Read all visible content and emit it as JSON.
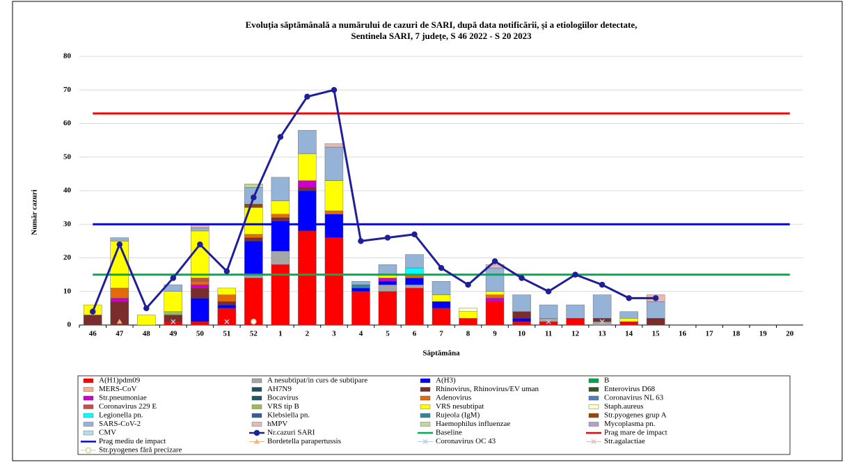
{
  "chart_data": {
    "type": "bar",
    "title": "Evoluția săptămânală a numărului  de cazuri de SARI, după data notificării, și a etiologiilor detectate,",
    "subtitle": "Sentinela SARI, 7 județe, S 46 2022 - S 20 2023",
    "y_label": "Număr cazuri",
    "x_label": "Săptămâna",
    "categories": [
      "46",
      "47",
      "48",
      "49",
      "50",
      "51",
      "52",
      "1",
      "2",
      "3",
      "4",
      "5",
      "6",
      "7",
      "8",
      "9",
      "10",
      "11",
      "12",
      "13",
      "14",
      "15",
      "16",
      "17",
      "18",
      "19",
      "20"
    ],
    "ylim": [
      0,
      80
    ],
    "yticks": [
      0,
      10,
      20,
      30,
      40,
      50,
      60,
      70,
      80
    ],
    "grid": true,
    "series": [
      {
        "name": "A(H1)pdm09",
        "type": "bar",
        "color": "#ff0000",
        "values": [
          0,
          0,
          0,
          1,
          1,
          5,
          14,
          18,
          28,
          26,
          10,
          10,
          11,
          5,
          2,
          7,
          1,
          1,
          2,
          0,
          1,
          0,
          0,
          0,
          0,
          0,
          0
        ]
      },
      {
        "name": "A nesubtipat/in curs de subtipare",
        "type": "bar",
        "color": "#a6a6a6",
        "values": [
          0,
          0,
          0,
          0,
          0,
          0,
          1,
          4,
          0,
          0,
          0,
          2,
          1,
          0,
          0,
          0,
          0,
          1,
          0,
          1,
          0,
          0,
          0,
          0,
          0,
          0,
          0
        ]
      },
      {
        "name": "A(H3)",
        "type": "bar",
        "color": "#0000ff",
        "values": [
          0,
          0,
          0,
          0,
          7,
          1,
          10,
          9,
          12,
          7,
          1,
          1,
          2,
          2,
          0,
          0,
          1,
          0,
          0,
          0,
          0,
          0,
          0,
          0,
          0,
          0,
          0
        ]
      },
      {
        "name": "B",
        "type": "bar",
        "color": "#00a550"
      },
      {
        "name": "MERS-CoV",
        "type": "bar",
        "color": "#f4b183"
      },
      {
        "name": "AH7N9",
        "type": "bar",
        "color": "#1f4e5f"
      },
      {
        "name": "Rhinovirus, Rhinovirus/EV uman",
        "type": "bar",
        "color": "#7b2c2c",
        "values": [
          3,
          7,
          0,
          2,
          3,
          1,
          1,
          1,
          1,
          0,
          0,
          0,
          0,
          0,
          0,
          0,
          2,
          0,
          0,
          1,
          0,
          2,
          0,
          0,
          0,
          0,
          0
        ]
      },
      {
        "name": "Enterovirus D68",
        "type": "bar",
        "color": "#375623"
      },
      {
        "name": "Str.pneumoniae",
        "type": "bar",
        "color": "#cc00cc",
        "values": [
          0,
          1,
          0,
          0,
          1,
          0,
          0,
          0,
          2,
          0,
          0,
          1,
          0,
          0,
          0,
          1,
          0,
          0,
          0,
          0,
          0,
          0,
          0,
          0,
          0,
          0,
          0
        ]
      },
      {
        "name": "Bocavirus",
        "type": "bar",
        "color": "#215967"
      },
      {
        "name": "Adenovirus",
        "type": "bar",
        "color": "#e36c09",
        "values": [
          0,
          3,
          0,
          0,
          1,
          2,
          1,
          1,
          0,
          1,
          0,
          0,
          1,
          0,
          0,
          1,
          0,
          0,
          0,
          0,
          0,
          0,
          0,
          0,
          0,
          0,
          0
        ]
      },
      {
        "name": "Coronavirus NL 63",
        "type": "bar",
        "color": "#4f81bd"
      },
      {
        "name": "Coronavirus 229 E",
        "type": "bar",
        "color": "#c0504d",
        "values": [
          0,
          0,
          0,
          0,
          1,
          0,
          0,
          0,
          0,
          0,
          0,
          0,
          0,
          0,
          0,
          0,
          0,
          0,
          0,
          0,
          0,
          0,
          0,
          0,
          0,
          0,
          0
        ]
      },
      {
        "name": "VRS tip B",
        "type": "bar",
        "color": "#9bbb59",
        "values": [
          0,
          0,
          0,
          1,
          0,
          0,
          0,
          0,
          0,
          0,
          0,
          0,
          0,
          0,
          0,
          0,
          0,
          0,
          0,
          0,
          0,
          0,
          0,
          0,
          0,
          0,
          0
        ]
      },
      {
        "name": "VRS nesubtipat",
        "type": "bar",
        "color": "#ffff00",
        "values": [
          3,
          14,
          3,
          6,
          14,
          2,
          8,
          4,
          8,
          9,
          0,
          1,
          0,
          2,
          2,
          1,
          0,
          0,
          0,
          0,
          1,
          0,
          0,
          0,
          0,
          0,
          0
        ]
      },
      {
        "name": "Staph.aureus",
        "type": "bar",
        "color": "#ffffcc",
        "values": [
          0,
          0,
          0,
          0,
          0,
          0,
          0,
          0,
          0,
          0,
          0,
          0,
          0,
          0,
          1,
          0,
          0,
          0,
          0,
          0,
          0,
          0,
          0,
          0,
          0,
          0,
          0
        ]
      },
      {
        "name": "Legionella pn.",
        "type": "bar",
        "color": "#00ffff",
        "values": [
          0,
          0,
          0,
          0,
          0,
          0,
          0,
          0,
          0,
          0,
          0,
          0,
          2,
          0,
          0,
          0,
          0,
          0,
          0,
          0,
          0,
          0,
          0,
          0,
          0,
          0,
          0
        ]
      },
      {
        "name": "Klebsiella pn.",
        "type": "bar",
        "color": "#366092"
      },
      {
        "name": "Rujeola (IgM)",
        "type": "bar",
        "color": "#31859c",
        "values": [
          0,
          0,
          0,
          0,
          0,
          0,
          0,
          0,
          0,
          0,
          1,
          0,
          0,
          0,
          0,
          0,
          0,
          0,
          0,
          0,
          0,
          0,
          0,
          0,
          0,
          0,
          0
        ]
      },
      {
        "name": "Str.pyogenes grup A",
        "type": "bar",
        "color": "#974706",
        "values": [
          0,
          0,
          0,
          0,
          0,
          0,
          1,
          0,
          0,
          0,
          0,
          0,
          0,
          0,
          0,
          0,
          0,
          0,
          0,
          0,
          0,
          0,
          0,
          0,
          0,
          0,
          0
        ]
      },
      {
        "name": "SARS-CoV-2",
        "type": "bar",
        "color": "#95b3d7",
        "values": [
          0,
          1,
          0,
          2,
          1,
          0,
          5,
          7,
          7,
          10,
          1,
          3,
          4,
          4,
          0,
          7,
          5,
          4,
          4,
          7,
          2,
          5,
          0,
          0,
          0,
          0,
          0
        ]
      },
      {
        "name": "hMPV",
        "type": "bar",
        "color": "#e6b9b8",
        "values": [
          0,
          0,
          0,
          0,
          1,
          0,
          0,
          0,
          0,
          1,
          0,
          0,
          0,
          0,
          0,
          1,
          0,
          0,
          0,
          0,
          0,
          2,
          0,
          0,
          0,
          0,
          0
        ]
      },
      {
        "name": "Haemophilus influenzae",
        "type": "bar",
        "color": "#c4d79b",
        "values": [
          0,
          0,
          0,
          0,
          0,
          0,
          1,
          0,
          0,
          0,
          0,
          0,
          0,
          0,
          0,
          0,
          0,
          0,
          0,
          0,
          0,
          0,
          0,
          0,
          0,
          0,
          0
        ]
      },
      {
        "name": "Mycoplasma pn.",
        "type": "bar",
        "color": "#b3a2c7"
      },
      {
        "name": "CMV",
        "type": "bar",
        "color": "#b7dee8"
      },
      {
        "name": "Nr.cazuri SARI",
        "type": "line",
        "color": "#1f1f99",
        "marker": "circle",
        "values": [
          4,
          24,
          5,
          14,
          24,
          16,
          38,
          56,
          68,
          70,
          25,
          26,
          27,
          17,
          12,
          19,
          14,
          10,
          15,
          12,
          8,
          8,
          null,
          null,
          null,
          null,
          null
        ]
      },
      {
        "name": "Baseline",
        "type": "threshold",
        "color": "#00b050",
        "value": 15
      },
      {
        "name": "Prag mare de impact",
        "type": "threshold",
        "color": "#ff0000",
        "value": 63
      },
      {
        "name": "Prag mediu de impact",
        "type": "threshold",
        "color": "#0000ff",
        "value": 30
      },
      {
        "name": "Bordetella parapertussis",
        "type": "marker",
        "color": "#f4b183",
        "marker": "triangle",
        "values": [
          null,
          1,
          null,
          null,
          null,
          null,
          null,
          null,
          null,
          null,
          null,
          null,
          null,
          null,
          null,
          null,
          null,
          null,
          null,
          null,
          null,
          null,
          null,
          null,
          null,
          null,
          null
        ]
      },
      {
        "name": "Coronavirus OC 43",
        "type": "marker",
        "color": "#b8cce4",
        "marker": "x",
        "values": [
          null,
          null,
          null,
          1,
          null,
          1,
          null,
          null,
          null,
          null,
          null,
          null,
          null,
          null,
          null,
          null,
          null,
          1,
          null,
          1,
          null,
          null,
          null,
          null,
          null,
          null,
          null
        ]
      },
      {
        "name": "Str.agalactiae",
        "type": "marker",
        "color": "#e6b9b8",
        "marker": "x"
      },
      {
        "name": "Str.pyogenes fără precizare",
        "type": "marker",
        "color": "#c4d79b",
        "marker": "circle",
        "values": [
          null,
          null,
          null,
          null,
          null,
          null,
          1,
          null,
          null,
          null,
          null,
          null,
          null,
          null,
          null,
          null,
          null,
          null,
          null,
          null,
          null,
          null,
          null,
          null,
          null,
          null,
          null
        ]
      }
    ]
  }
}
